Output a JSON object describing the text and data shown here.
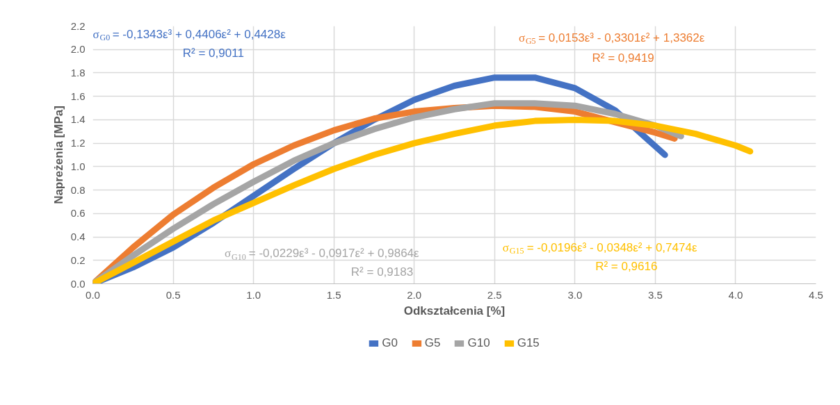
{
  "chart_data": {
    "type": "line",
    "xlabel": "Odkształcenia [%]",
    "ylabel": "Napreżenia [MPa]",
    "xlim": [
      0,
      4.5
    ],
    "xticks": [
      {
        "value": 0,
        "label": "0.0"
      },
      {
        "value": 0.5,
        "label": "0.5"
      },
      {
        "value": 1,
        "label": "1.0"
      },
      {
        "value": 1.5,
        "label": "1.5"
      },
      {
        "value": 2,
        "label": "2.0"
      },
      {
        "value": 2.5,
        "label": "2.5"
      },
      {
        "value": 3,
        "label": "3.0"
      },
      {
        "value": 3.5,
        "label": "3.5"
      },
      {
        "value": 4,
        "label": "4.0"
      },
      {
        "value": 4.5,
        "label": "4.5"
      }
    ],
    "ylim": [
      0,
      2.2
    ],
    "yticks": [
      {
        "value": 0,
        "label": "0.0"
      },
      {
        "value": 0.2,
        "label": "0.2"
      },
      {
        "value": 0.4,
        "label": "0.4"
      },
      {
        "value": 0.6,
        "label": "0.6"
      },
      {
        "value": 0.8,
        "label": "0.8"
      },
      {
        "value": 1,
        "label": "1.0"
      },
      {
        "value": 1.2,
        "label": "1.2"
      },
      {
        "value": 1.4,
        "label": "1.4"
      },
      {
        "value": 1.6,
        "label": "1.6"
      },
      {
        "value": 1.8,
        "label": "1.8"
      },
      {
        "value": 2,
        "label": "2.0"
      },
      {
        "value": 2.2,
        "label": "2.2"
      }
    ],
    "grid": true,
    "legend": "bottom",
    "marker": "none",
    "line_style": "solid",
    "series": [
      {
        "name": "G0",
        "color": "#4472c4",
        "x": [
          0,
          0.25,
          0.5,
          0.75,
          1,
          1.25,
          1.5,
          1.75,
          2,
          2.25,
          2.5,
          2.75,
          3,
          3.25,
          3.56
        ],
        "values": [
          0,
          0.14,
          0.31,
          0.52,
          0.75,
          0.98,
          1.2,
          1.4,
          1.57,
          1.69,
          1.76,
          1.76,
          1.67,
          1.48,
          1.1
        ]
      },
      {
        "name": "G5",
        "color": "#ed7d31",
        "x": [
          0,
          0.25,
          0.5,
          0.75,
          1,
          1.25,
          1.5,
          1.75,
          2,
          2.25,
          2.5,
          2.75,
          3,
          3.25,
          3.5,
          3.62
        ],
        "values": [
          0,
          0.31,
          0.59,
          0.82,
          1.02,
          1.18,
          1.31,
          1.41,
          1.47,
          1.5,
          1.52,
          1.51,
          1.47,
          1.38,
          1.29,
          1.24
        ]
      },
      {
        "name": "G10",
        "color": "#a5a5a5",
        "x": [
          0,
          0.25,
          0.5,
          0.75,
          1,
          1.25,
          1.5,
          1.75,
          2,
          2.25,
          2.5,
          2.75,
          3,
          3.25,
          3.5,
          3.66
        ],
        "values": [
          0,
          0.24,
          0.47,
          0.68,
          0.87,
          1.05,
          1.2,
          1.32,
          1.42,
          1.49,
          1.54,
          1.54,
          1.52,
          1.45,
          1.35,
          1.26
        ]
      },
      {
        "name": "G15",
        "color": "#ffc000",
        "x": [
          0,
          0.25,
          0.5,
          0.75,
          1,
          1.25,
          1.5,
          1.75,
          2,
          2.25,
          2.5,
          2.75,
          3,
          3.25,
          3.5,
          3.75,
          4,
          4.09
        ],
        "values": [
          0,
          0.18,
          0.36,
          0.54,
          0.69,
          0.84,
          0.98,
          1.1,
          1.2,
          1.28,
          1.35,
          1.39,
          1.4,
          1.39,
          1.35,
          1.28,
          1.18,
          1.13
        ]
      }
    ],
    "annotations": [
      "σ$_{G0}$ = -0,1343ε³ + 0,4406ε² + 0,4428ε",
      "R² = 0,9011",
      "σ$_{G5}$ = 0,0153ε³ - 0,3301ε² + 1,3362ε",
      "R² = 0,9419",
      "σ$_{G10}$ = -0,0229ε³ - 0,0917ε² + 0,9864ε",
      "R² = 0,9183",
      "σ$_{G15}$ = -0,0196ε³ - 0,0348ε² + 0,7474ε",
      "R² = 0,9616"
    ]
  }
}
